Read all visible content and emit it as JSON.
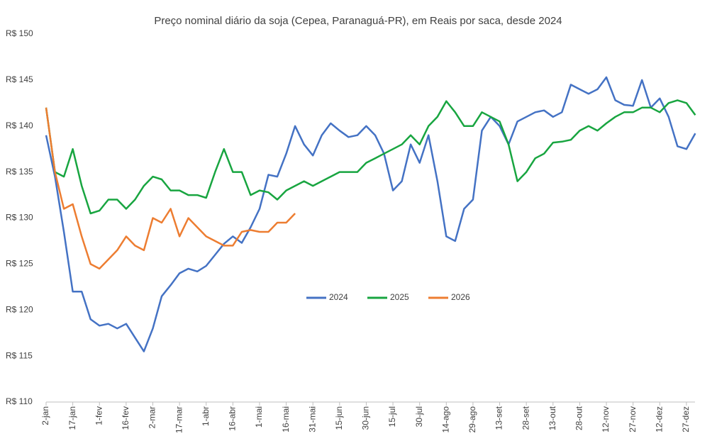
{
  "chart_data": {
    "type": "line",
    "title": "Preço nominal diário da soja (Cepea, Paranaguá-PR), em Reais por saca, desde 2024",
    "categories": [
      "2-jan",
      null,
      null,
      "17-jan",
      null,
      null,
      "1-fev",
      null,
      null,
      "16-fev",
      null,
      null,
      "2-mar",
      null,
      null,
      "17-mar",
      null,
      null,
      "1-abr",
      null,
      null,
      "16-abr",
      null,
      null,
      "1-mai",
      null,
      null,
      "16-mai",
      null,
      null,
      "31-mai",
      null,
      null,
      "15-jun",
      null,
      null,
      "30-jun",
      null,
      null,
      "15-jul",
      null,
      null,
      "30-jul",
      null,
      null,
      "14-ago",
      null,
      null,
      "29-ago",
      null,
      null,
      "13-set",
      null,
      null,
      "28-set",
      null,
      null,
      "13-out",
      null,
      null,
      "28-out",
      null,
      null,
      "12-nov",
      null,
      null,
      "27-nov",
      null,
      null,
      "12-dez",
      null,
      null,
      "27-dez",
      null
    ],
    "series": [
      {
        "name": "2024",
        "color": "#4472c4",
        "values": [
          139,
          134.5,
          128.5,
          122,
          122,
          119,
          118.3,
          118.5,
          118,
          118.5,
          117,
          115.5,
          118,
          121.5,
          122.7,
          124,
          124.5,
          124.2,
          124.8,
          126,
          127.2,
          128,
          127.3,
          129,
          131,
          134.7,
          134.5,
          137,
          140,
          138,
          136.8,
          139,
          140.3,
          139.5,
          138.8,
          139,
          140,
          139,
          137,
          133,
          134,
          138,
          136,
          139,
          134,
          128,
          127.5,
          131,
          132,
          139.5,
          141,
          140,
          138,
          140.5,
          141,
          141.5,
          141.7,
          141,
          141.5,
          144.5,
          144,
          143.5,
          144,
          145.3,
          142.8,
          142.3,
          142.2,
          145,
          142,
          143,
          141,
          137.8,
          137.5,
          139.2
        ]
      },
      {
        "name": "2025",
        "color": "#18a540",
        "values": [
          142,
          135,
          134.5,
          137.5,
          133.5,
          130.5,
          130.8,
          132,
          132,
          131,
          132,
          133.5,
          134.5,
          134.2,
          133,
          133,
          132.5,
          132.5,
          132.2,
          135,
          137.5,
          135,
          135,
          132.5,
          133,
          132.8,
          132,
          133,
          133.5,
          134,
          133.5,
          134,
          134.5,
          135,
          135,
          135,
          136,
          136.5,
          137,
          137.5,
          138,
          139,
          138,
          140,
          141,
          142.7,
          141.5,
          140,
          140,
          141.5,
          141,
          140.5,
          138,
          134,
          135,
          136.5,
          137,
          138.2,
          138.3,
          138.5,
          139.5,
          140,
          139.5,
          140.3,
          141,
          141.5,
          141.5,
          142,
          142,
          141.5,
          142.5,
          142.8,
          142.5,
          141.2
        ]
      },
      {
        "name": "2026",
        "color": "#ed7d31",
        "values": [
          142,
          135,
          131,
          131.5,
          128,
          125,
          124.5,
          125.5,
          126.5,
          128,
          127,
          126.5,
          130,
          129.5,
          131,
          128,
          130,
          129,
          128,
          127.5,
          127,
          127,
          128.5,
          128.7,
          128.5,
          128.5,
          129.5,
          129.5,
          130.5,
          null,
          null,
          null,
          null,
          null,
          null,
          null,
          null,
          null,
          null,
          null,
          null,
          null,
          null,
          null,
          null,
          null,
          null,
          null,
          null,
          null,
          null,
          null,
          null,
          null,
          null,
          null,
          null,
          null,
          null,
          null,
          null,
          null,
          null,
          null,
          null,
          null,
          null,
          null,
          null,
          null,
          null,
          null,
          null,
          null
        ]
      }
    ],
    "ylim": [
      110,
      150
    ],
    "yticks": [
      {
        "value": 110,
        "label": "R$ 110"
      },
      {
        "value": 115,
        "label": "R$ 115"
      },
      {
        "value": 120,
        "label": "R$ 120"
      },
      {
        "value": 125,
        "label": "R$ 125"
      },
      {
        "value": 130,
        "label": "R$ 130"
      },
      {
        "value": 135,
        "label": "R$ 135"
      },
      {
        "value": 140,
        "label": "R$ 140"
      },
      {
        "value": 145,
        "label": "R$ 145"
      },
      {
        "value": 150,
        "label": "R$ 150"
      }
    ],
    "grid": false,
    "legend": "center"
  }
}
